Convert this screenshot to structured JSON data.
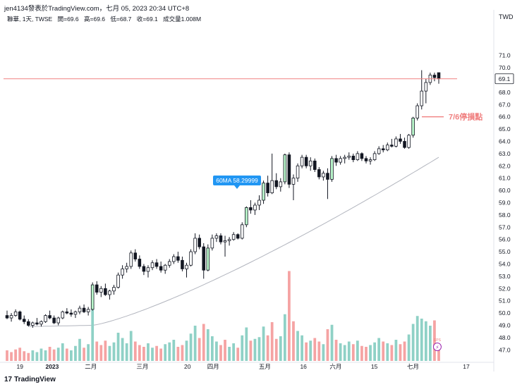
{
  "header": {
    "title": "jen4134發表於TradingView.com，七月 05, 2023 20:34 UTC+8"
  },
  "ohlc_bar": {
    "symbol": "聯華, 1天, TWSE",
    "open": "開=69.6",
    "high": "高=69.6",
    "low": "低=68.7",
    "close": "收=69.1",
    "volume": "成交量1.008M"
  },
  "footer": {
    "brand": "TradingView",
    "logo_glyph": "17"
  },
  "colors": {
    "up": "#26a69a",
    "down": "#131722",
    "hollow_up_border": "#131722",
    "volume_up": "#8fd1c6",
    "volume_down": "#f5a3a3",
    "ma_line": "#b2b5be",
    "price_line": "#f08080",
    "annotation": "#f08080",
    "ma_label_bg": "#2196f3"
  },
  "chart_data": {
    "type": "candlestick",
    "currency_label": "TWD",
    "y_ticks": [
      "47.0",
      "48.0",
      "49.0",
      "50.0",
      "51.0",
      "52.0",
      "53.0",
      "54.0",
      "55.0",
      "56.0",
      "57.0",
      "58.0",
      "59.0",
      "60.0",
      "61.0",
      "62.0",
      "63.0",
      "64.0",
      "65.0",
      "66.0",
      "67.0",
      "68.0",
      "69.0",
      "70.0",
      "71.0"
    ],
    "ylim": [
      46.5,
      71.5
    ],
    "x_ticks": [
      "19",
      "2023",
      "二月",
      "三月",
      "20",
      "四月",
      "五月",
      "16",
      "六月",
      "15",
      "七月",
      "17"
    ],
    "last_price": "69.1",
    "ma_label": "60MA 58.29999",
    "annotation": "7/6停損點",
    "stop_price": 66.0,
    "volume_icon_label": "EPS",
    "ma_start": 49.0,
    "ma_end": 62.7,
    "candles": [
      [
        49.8,
        50.2,
        49.5,
        49.6
      ],
      [
        49.6,
        50.0,
        49.3,
        49.8
      ],
      [
        49.8,
        50.3,
        49.7,
        50.1
      ],
      [
        50.1,
        50.2,
        49.4,
        49.5
      ],
      [
        49.5,
        49.8,
        49.1,
        49.3
      ],
      [
        49.3,
        49.5,
        48.9,
        49.0
      ],
      [
        49.0,
        49.3,
        48.8,
        49.2
      ],
      [
        49.2,
        49.6,
        49.0,
        49.1
      ],
      [
        49.1,
        49.4,
        48.9,
        49.3
      ],
      [
        49.3,
        49.9,
        49.2,
        49.8
      ],
      [
        49.8,
        50.2,
        49.5,
        49.6
      ],
      [
        49.6,
        49.8,
        49.1,
        49.2
      ],
      [
        49.2,
        49.7,
        49.0,
        49.6
      ],
      [
        49.6,
        50.2,
        49.5,
        50.1
      ],
      [
        50.1,
        50.4,
        49.9,
        50.0
      ],
      [
        50.0,
        50.3,
        49.7,
        49.9
      ],
      [
        49.9,
        50.2,
        49.6,
        50.1
      ],
      [
        50.1,
        50.6,
        49.9,
        50.4
      ],
      [
        50.4,
        50.7,
        50.0,
        50.1
      ],
      [
        50.1,
        50.5,
        49.8,
        50.3
      ],
      [
        50.3,
        52.5,
        50.2,
        52.3
      ],
      [
        52.3,
        52.6,
        51.5,
        51.7
      ],
      [
        51.7,
        52.2,
        51.3,
        52.0
      ],
      [
        52.0,
        52.4,
        51.4,
        51.5
      ],
      [
        51.5,
        51.9,
        51.1,
        51.8
      ],
      [
        51.8,
        52.3,
        51.5,
        52.1
      ],
      [
        52.1,
        53.3,
        52.0,
        53.1
      ],
      [
        53.1,
        53.9,
        52.8,
        53.6
      ],
      [
        53.6,
        54.1,
        53.3,
        53.8
      ],
      [
        53.8,
        55.1,
        53.6,
        54.9
      ],
      [
        54.9,
        55.2,
        54.2,
        54.4
      ],
      [
        54.4,
        54.7,
        53.6,
        53.8
      ],
      [
        53.8,
        54.0,
        53.1,
        53.4
      ],
      [
        53.4,
        53.9,
        52.9,
        53.7
      ],
      [
        53.7,
        54.3,
        53.5,
        54.1
      ],
      [
        54.1,
        54.4,
        53.6,
        53.8
      ],
      [
        53.8,
        54.2,
        53.3,
        53.5
      ],
      [
        53.5,
        54.0,
        53.2,
        53.9
      ],
      [
        53.9,
        54.4,
        53.7,
        54.2
      ],
      [
        54.2,
        54.8,
        54.0,
        54.6
      ],
      [
        54.6,
        55.0,
        54.1,
        54.3
      ],
      [
        54.3,
        54.6,
        53.4,
        53.6
      ],
      [
        53.6,
        54.1,
        52.9,
        53.9
      ],
      [
        53.9,
        55.2,
        53.8,
        55.0
      ],
      [
        55.0,
        56.5,
        54.8,
        56.1
      ],
      [
        56.1,
        56.4,
        55.2,
        55.4
      ],
      [
        55.4,
        55.7,
        52.8,
        53.5
      ],
      [
        53.5,
        55.6,
        53.4,
        55.3
      ],
      [
        55.3,
        56.4,
        55.1,
        56.1
      ],
      [
        56.1,
        56.5,
        55.8,
        56.3
      ],
      [
        56.3,
        56.5,
        55.6,
        55.8
      ],
      [
        55.8,
        56.3,
        54.6,
        55.9
      ],
      [
        55.9,
        56.2,
        55.5,
        56.0
      ],
      [
        56.0,
        56.6,
        55.9,
        56.4
      ],
      [
        56.4,
        56.5,
        56.0,
        56.1
      ],
      [
        56.1,
        57.4,
        56.0,
        57.2
      ],
      [
        57.2,
        58.7,
        57.0,
        58.6
      ],
      [
        58.6,
        59.2,
        58.1,
        58.4
      ],
      [
        58.4,
        59.0,
        58.0,
        58.8
      ],
      [
        58.8,
        59.6,
        58.4,
        59.2
      ],
      [
        59.2,
        60.8,
        58.9,
        60.6
      ],
      [
        60.6,
        61.2,
        59.5,
        59.8
      ],
      [
        59.8,
        63.0,
        59.7,
        60.8
      ],
      [
        60.8,
        61.4,
        60.1,
        60.3
      ],
      [
        60.3,
        61.0,
        59.9,
        60.7
      ],
      [
        60.7,
        63.0,
        60.5,
        62.9
      ],
      [
        62.9,
        63.1,
        60.2,
        60.5
      ],
      [
        60.5,
        61.3,
        59.2,
        61.0
      ],
      [
        61.0,
        62.2,
        60.7,
        62.0
      ],
      [
        62.0,
        62.9,
        61.8,
        62.7
      ],
      [
        62.7,
        62.9,
        61.8,
        62.0
      ],
      [
        62.0,
        62.7,
        61.6,
        62.4
      ],
      [
        62.4,
        62.6,
        61.5,
        61.7
      ],
      [
        61.7,
        61.9,
        60.9,
        61.1
      ],
      [
        61.1,
        61.6,
        60.8,
        61.4
      ],
      [
        61.4,
        61.8,
        59.3,
        60.9
      ],
      [
        60.9,
        62.8,
        60.7,
        62.6
      ],
      [
        62.6,
        62.9,
        62.0,
        62.3
      ],
      [
        62.3,
        62.8,
        62.1,
        62.6
      ],
      [
        62.6,
        62.9,
        62.2,
        62.7
      ],
      [
        62.7,
        63.1,
        62.5,
        62.8
      ],
      [
        62.8,
        63.0,
        62.3,
        62.5
      ],
      [
        62.5,
        63.2,
        62.4,
        63.0
      ],
      [
        63.0,
        63.1,
        62.4,
        62.6
      ],
      [
        62.6,
        62.8,
        62.2,
        62.4
      ],
      [
        62.4,
        62.7,
        62.1,
        62.5
      ],
      [
        62.5,
        63.2,
        62.4,
        63.0
      ],
      [
        63.0,
        63.6,
        62.9,
        63.4
      ],
      [
        63.4,
        63.7,
        63.1,
        63.3
      ],
      [
        63.3,
        63.9,
        63.2,
        63.7
      ],
      [
        63.7,
        64.2,
        63.5,
        63.6
      ],
      [
        63.6,
        64.4,
        63.5,
        64.2
      ],
      [
        64.2,
        64.6,
        63.8,
        64.0
      ],
      [
        64.0,
        64.3,
        63.4,
        63.5
      ],
      [
        63.5,
        64.6,
        63.4,
        64.5
      ],
      [
        64.5,
        66.0,
        64.3,
        65.9
      ],
      [
        65.9,
        67.1,
        65.7,
        66.9
      ],
      [
        66.9,
        69.8,
        66.6,
        68.1
      ],
      [
        68.1,
        69.1,
        67.1,
        68.8
      ],
      [
        68.8,
        69.6,
        68.6,
        69.4
      ],
      [
        69.4,
        69.6,
        68.9,
        69.2
      ],
      [
        69.6,
        69.6,
        68.7,
        69.1
      ]
    ],
    "volumes": [
      [
        1.2,
        0
      ],
      [
        1.0,
        0
      ],
      [
        1.3,
        0
      ],
      [
        1.5,
        0
      ],
      [
        1.1,
        0
      ],
      [
        0.9,
        0
      ],
      [
        1.2,
        1
      ],
      [
        1.0,
        1
      ],
      [
        1.4,
        1
      ],
      [
        1.2,
        1
      ],
      [
        1.6,
        0
      ],
      [
        1.3,
        0
      ],
      [
        1.5,
        1
      ],
      [
        2.0,
        1
      ],
      [
        1.4,
        0
      ],
      [
        1.2,
        1
      ],
      [
        1.7,
        1
      ],
      [
        2.5,
        1
      ],
      [
        1.5,
        0
      ],
      [
        1.9,
        1
      ],
      [
        5.8,
        1
      ],
      [
        2.2,
        0
      ],
      [
        1.8,
        0
      ],
      [
        2.3,
        0
      ],
      [
        1.7,
        1
      ],
      [
        2.1,
        1
      ],
      [
        3.2,
        1
      ],
      [
        2.6,
        1
      ],
      [
        2.0,
        1
      ],
      [
        3.4,
        1
      ],
      [
        2.2,
        0
      ],
      [
        1.8,
        0
      ],
      [
        1.6,
        0
      ],
      [
        2.0,
        1
      ],
      [
        1.5,
        1
      ],
      [
        1.7,
        0
      ],
      [
        1.4,
        0
      ],
      [
        1.9,
        1
      ],
      [
        2.1,
        1
      ],
      [
        2.4,
        1
      ],
      [
        1.6,
        0
      ],
      [
        1.8,
        0
      ],
      [
        2.3,
        1
      ],
      [
        3.1,
        1
      ],
      [
        4.0,
        1
      ],
      [
        2.6,
        0
      ],
      [
        4.2,
        0
      ],
      [
        3.6,
        1
      ],
      [
        2.8,
        1
      ],
      [
        2.2,
        1
      ],
      [
        1.8,
        0
      ],
      [
        2.4,
        0
      ],
      [
        1.6,
        1
      ],
      [
        2.0,
        1
      ],
      [
        1.5,
        0
      ],
      [
        2.9,
        1
      ],
      [
        3.8,
        1
      ],
      [
        2.3,
        0
      ],
      [
        2.5,
        1
      ],
      [
        2.7,
        1
      ],
      [
        3.9,
        1
      ],
      [
        2.9,
        0
      ],
      [
        4.4,
        0
      ],
      [
        2.5,
        0
      ],
      [
        2.8,
        1
      ],
      [
        5.3,
        1
      ],
      [
        10.2,
        0
      ],
      [
        4.5,
        0
      ],
      [
        3.4,
        1
      ],
      [
        2.9,
        1
      ],
      [
        2.1,
        0
      ],
      [
        2.3,
        1
      ],
      [
        2.6,
        0
      ],
      [
        2.2,
        0
      ],
      [
        1.9,
        1
      ],
      [
        3.6,
        0
      ],
      [
        4.1,
        1
      ],
      [
        2.4,
        0
      ],
      [
        2.0,
        1
      ],
      [
        1.8,
        1
      ],
      [
        2.2,
        1
      ],
      [
        1.9,
        0
      ],
      [
        2.3,
        1
      ],
      [
        1.7,
        0
      ],
      [
        1.6,
        0
      ],
      [
        1.8,
        1
      ],
      [
        2.1,
        1
      ],
      [
        2.6,
        1
      ],
      [
        2.2,
        0
      ],
      [
        2.0,
        1
      ],
      [
        1.8,
        0
      ],
      [
        2.4,
        1
      ],
      [
        1.9,
        0
      ],
      [
        2.2,
        0
      ],
      [
        3.0,
        1
      ],
      [
        4.2,
        1
      ],
      [
        5.1,
        1
      ],
      [
        4.8,
        1
      ],
      [
        4.5,
        1
      ],
      [
        4.0,
        1
      ],
      [
        4.6,
        0
      ],
      [
        1.3,
        0
      ]
    ]
  }
}
